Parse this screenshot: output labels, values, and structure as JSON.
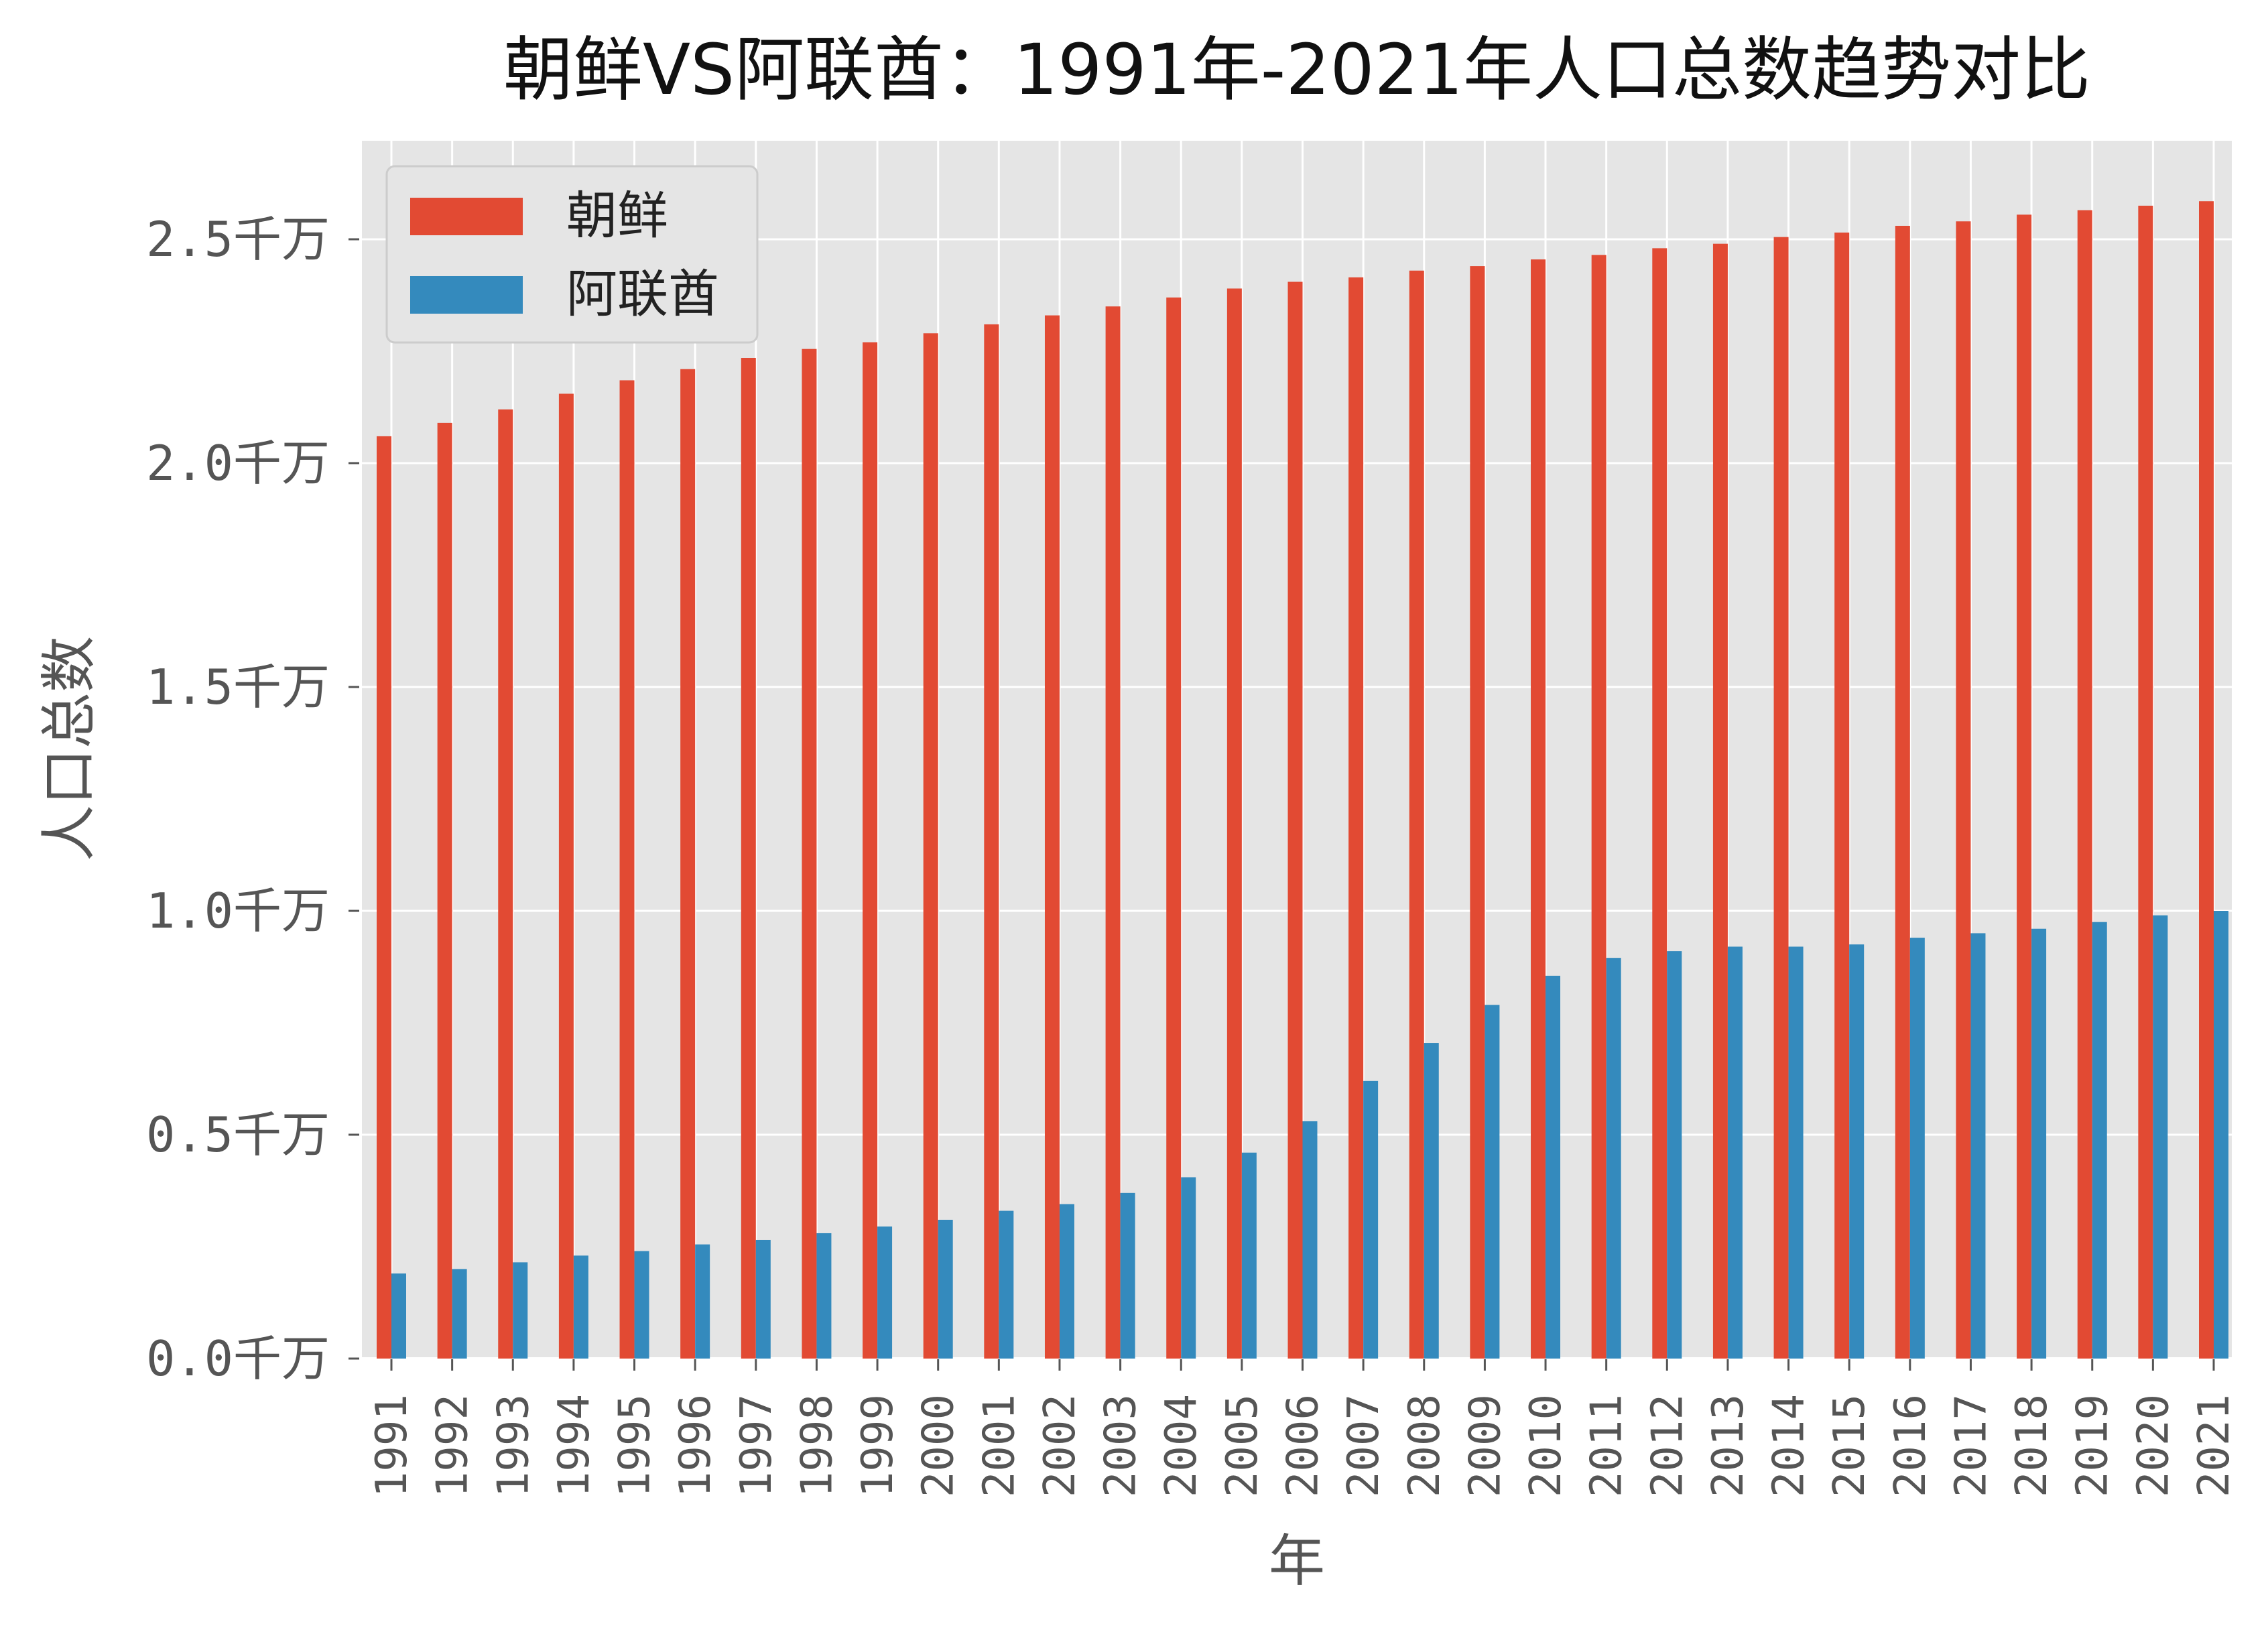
{
  "chart_data": {
    "type": "bar",
    "title": "朝鲜VS阿联酋：1991年-2021年人口总数趋势对比",
    "xlabel": "年",
    "ylabel": "人口总数",
    "ylim": [
      0,
      2.7
    ],
    "y_unit_suffix": "千万",
    "y_ticks": [
      "0.0千万",
      "0.5千万",
      "1.0千万",
      "1.5千万",
      "2.0千万",
      "2.5千万"
    ],
    "y_tick_values": [
      0,
      0.5,
      1.0,
      1.5,
      2.0,
      2.5
    ],
    "grid": true,
    "legend_position": "top-left",
    "categories": [
      "1991",
      "1992",
      "1993",
      "1994",
      "1995",
      "1996",
      "1997",
      "1998",
      "1999",
      "2000",
      "2001",
      "2002",
      "2003",
      "2004",
      "2005",
      "2006",
      "2007",
      "2008",
      "2009",
      "2010",
      "2011",
      "2012",
      "2013",
      "2014",
      "2015",
      "2016",
      "2017",
      "2018",
      "2019",
      "2020",
      "2021"
    ],
    "series": [
      {
        "name": "朝鲜",
        "color": "#E24A33",
        "values": [
          2.06,
          2.09,
          2.12,
          2.155,
          2.185,
          2.21,
          2.235,
          2.255,
          2.27,
          2.29,
          2.31,
          2.33,
          2.35,
          2.37,
          2.39,
          2.405,
          2.415,
          2.43,
          2.44,
          2.455,
          2.465,
          2.48,
          2.49,
          2.505,
          2.515,
          2.53,
          2.54,
          2.555,
          2.565,
          2.575,
          2.585
        ]
      },
      {
        "name": "阿联酋",
        "color": "#348ABD",
        "values": [
          0.19,
          0.2,
          0.215,
          0.23,
          0.24,
          0.255,
          0.265,
          0.28,
          0.295,
          0.31,
          0.33,
          0.345,
          0.37,
          0.405,
          0.46,
          0.53,
          0.62,
          0.705,
          0.79,
          0.855,
          0.895,
          0.91,
          0.92,
          0.92,
          0.925,
          0.94,
          0.95,
          0.96,
          0.975,
          0.99,
          1.0
        ]
      }
    ]
  }
}
